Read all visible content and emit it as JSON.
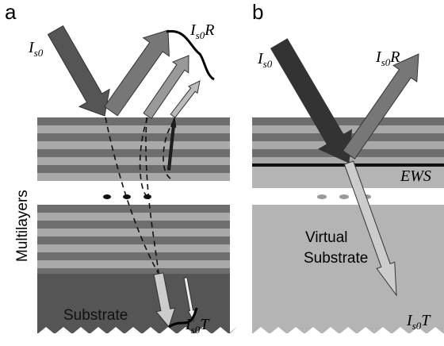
{
  "panels": [
    {
      "label": "a",
      "incident": {
        "base": "I",
        "sub": "s0"
      },
      "reflected": {
        "base": "I",
        "sub": "s0",
        "suffix": "R"
      },
      "transmitted": {
        "base": "I",
        "sub": "s0",
        "suffix": "T"
      },
      "side_label": "Multilayers",
      "substrate": "Substrate"
    },
    {
      "label": "b",
      "incident": {
        "base": "I",
        "sub": "s0"
      },
      "reflected": {
        "base": "I",
        "sub": "s0",
        "suffix": "R"
      },
      "transmitted": {
        "base": "I",
        "sub": "s0",
        "suffix": "T"
      },
      "ews": "EWS",
      "virtual_substrate": [
        "Virtual",
        "Substrate"
      ]
    }
  ]
}
